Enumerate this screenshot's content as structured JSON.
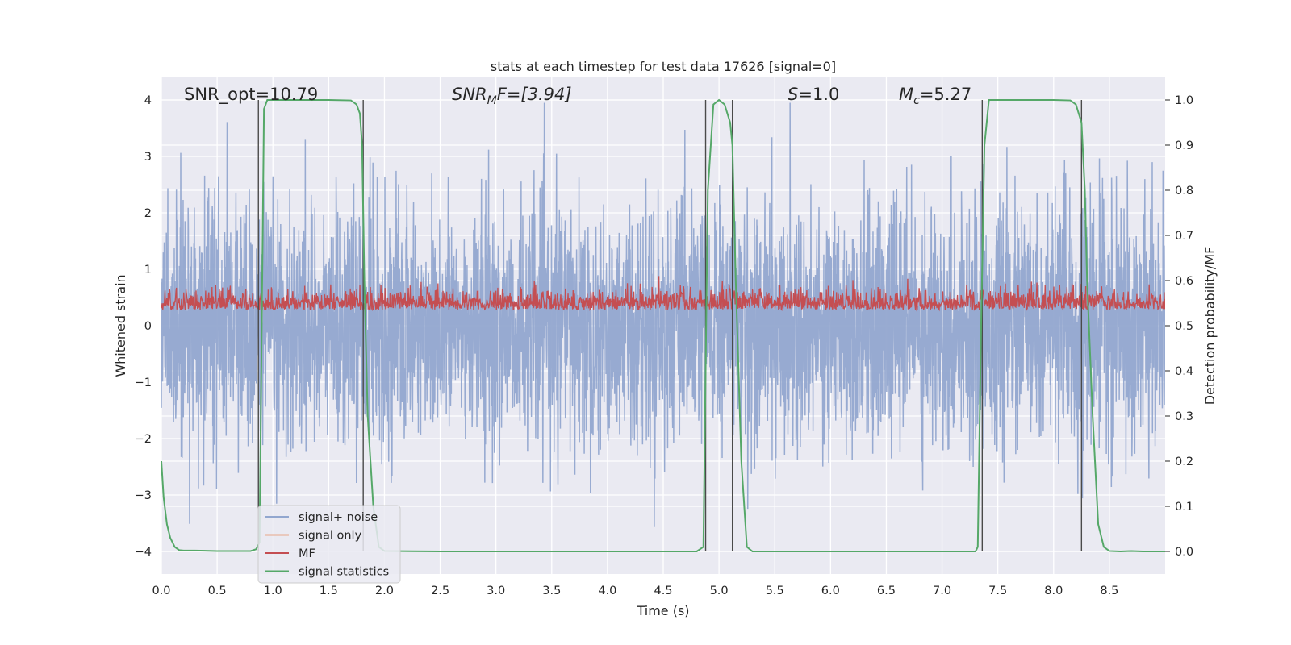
{
  "chart_data": {
    "type": "line",
    "title": "stats at each timestep for test data 17626 [signal=0]",
    "xlabel": "Time (s)",
    "ylabel": "Whitened strain",
    "y2label": "Detection probability/MF",
    "xlim": [
      0,
      9
    ],
    "ylim": [
      -4.4,
      4.4
    ],
    "y2lim": [
      -0.05,
      1.05
    ],
    "xticks": [
      "0.0",
      "0.5",
      "1.0",
      "1.5",
      "2.0",
      "2.5",
      "3.0",
      "3.5",
      "4.0",
      "4.5",
      "5.0",
      "5.5",
      "6.0",
      "6.5",
      "7.0",
      "7.5",
      "8.0",
      "8.5"
    ],
    "xtick_values": [
      0,
      0.5,
      1,
      1.5,
      2,
      2.5,
      3,
      3.5,
      4,
      4.5,
      5,
      5.5,
      6,
      6.5,
      7,
      7.5,
      8,
      8.5
    ],
    "yticks": [
      "−4",
      "−3",
      "−2",
      "−1",
      "0",
      "1",
      "2",
      "3",
      "4"
    ],
    "ytick_values": [
      -4,
      -3,
      -2,
      -1,
      0,
      1,
      2,
      3,
      4
    ],
    "y2ticks": [
      "0.0",
      "0.1",
      "0.2",
      "0.3",
      "0.4",
      "0.5",
      "0.6",
      "0.7",
      "0.8",
      "0.9",
      "1.0"
    ],
    "y2tick_values": [
      0,
      0.1,
      0.2,
      0.3,
      0.4,
      0.5,
      0.6,
      0.7,
      0.8,
      0.9,
      1.0
    ],
    "grid": true,
    "legend_position": "lower-left",
    "annotations": {
      "snr_opt": "SNR_opt=10.79",
      "snr_mf_main": "SNR",
      "snr_mf_sub": "M",
      "snr_mf_rest": "F=[3.94]",
      "s_main": "S",
      "s_rest": "=1.0",
      "mc_main": "M",
      "mc_sub": "c",
      "mc_rest": "=5.27"
    },
    "series": [
      {
        "name": "signal+ noise",
        "color": "#92a7cf",
        "axis": "left",
        "duration_s": 9,
        "amplitude_typical": 1.0,
        "peak_range": [
          -3.9,
          3.95
        ]
      },
      {
        "name": "signal only",
        "color": "#e8a88a",
        "axis": "left",
        "values_note": "zero"
      },
      {
        "name": "MF",
        "color": "#c44e52",
        "axis": "right",
        "range": [
          0.5,
          0.6
        ]
      },
      {
        "name": "signal statistics",
        "color": "#55a868",
        "axis": "right",
        "x": [
          0,
          0.02,
          0.05,
          0.08,
          0.12,
          0.16,
          0.2,
          0.3,
          0.5,
          0.7,
          0.8,
          0.85,
          0.88,
          0.9,
          0.92,
          0.95,
          1.0,
          1.2,
          1.5,
          1.7,
          1.75,
          1.78,
          1.8,
          1.82,
          1.85,
          1.9,
          1.95,
          2.0,
          2.5,
          3.0,
          4.0,
          4.8,
          4.86,
          4.9,
          4.95,
          5.0,
          5.05,
          5.1,
          5.12,
          5.15,
          5.2,
          5.25,
          5.3,
          6.0,
          7.0,
          7.3,
          7.32,
          7.35,
          7.38,
          7.42,
          7.5,
          8.0,
          8.15,
          8.2,
          8.25,
          8.28,
          8.3,
          8.35,
          8.4,
          8.45,
          8.5,
          8.6,
          8.7,
          8.8,
          8.9,
          9.0
        ],
        "y": [
          0.2,
          0.12,
          0.06,
          0.03,
          0.01,
          0.003,
          0.002,
          0.002,
          0.001,
          0.001,
          0.001,
          0.005,
          0.02,
          0.5,
          0.98,
          1.0,
          1.0,
          1.0,
          1.0,
          0.999,
          0.99,
          0.97,
          0.9,
          0.6,
          0.3,
          0.1,
          0.01,
          0.001,
          0.0,
          0.0,
          0.0,
          0.0,
          0.01,
          0.8,
          0.99,
          1.0,
          0.99,
          0.95,
          0.9,
          0.6,
          0.2,
          0.01,
          0.0,
          0.0,
          0.0,
          0.0,
          0.01,
          0.5,
          0.9,
          1.0,
          1.0,
          1.0,
          0.999,
          0.99,
          0.95,
          0.8,
          0.6,
          0.3,
          0.06,
          0.01,
          0.001,
          0.0,
          0.001,
          0.0,
          0.0,
          0.0
        ]
      }
    ],
    "vertical_markers_s": [
      0.87,
      1.81,
      4.88,
      5.12,
      7.36,
      8.25
    ]
  }
}
